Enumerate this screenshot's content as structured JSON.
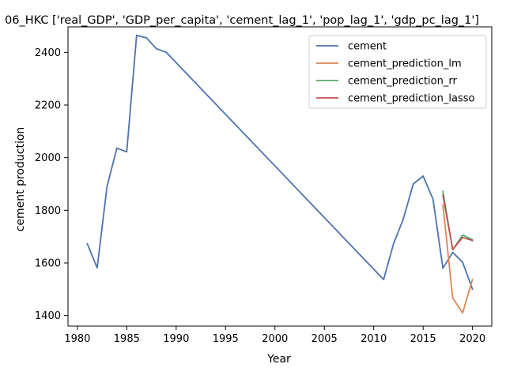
{
  "chart_data": {
    "type": "line",
    "title": "06_HKC ['real_GDP', 'GDP_per_capita', 'cement_lag_1', 'pop_lag_1', 'gdp_pc_lag_1']",
    "xlabel": "Year",
    "ylabel": "cement production",
    "xlim": [
      1979.05,
      2021.95
    ],
    "ylim": [
      1360,
      2497
    ],
    "xticks": [
      1980,
      1985,
      1990,
      1995,
      2000,
      2005,
      2010,
      2015,
      2020
    ],
    "yticks": [
      1400,
      1600,
      1800,
      2000,
      2200,
      2400
    ],
    "grid": false,
    "legend_position": "top-right",
    "series": [
      {
        "name": "cement",
        "color": "#4c72b0",
        "x": [
          1981,
          1982,
          1983,
          1984,
          1985,
          1986,
          1987,
          1988,
          1989,
          2011,
          2012,
          2013,
          2014,
          2015,
          2016,
          2017,
          2018,
          2019,
          2020
        ],
        "y": [
          1673,
          1581,
          1891,
          2036,
          2022,
          2465,
          2455,
          2414,
          2400,
          1537,
          1672,
          1768,
          1900,
          1930,
          1842,
          1580,
          1640,
          1603,
          1500
        ]
      },
      {
        "name": "cement_prediction_lm",
        "color": "#dd8452",
        "x": [
          2017,
          2018,
          2019,
          2020
        ],
        "y": [
          1820,
          1467,
          1410,
          1537
        ]
      },
      {
        "name": "cement_prediction_rr",
        "color": "#55a868",
        "x": [
          2017,
          2018,
          2019,
          2020
        ],
        "y": [
          1872,
          1650,
          1706,
          1688
        ]
      },
      {
        "name": "cement_prediction_lasso",
        "color": "#c44e52",
        "x": [
          2017,
          2018,
          2019,
          2020
        ],
        "y": [
          1857,
          1651,
          1697,
          1685
        ]
      }
    ]
  }
}
